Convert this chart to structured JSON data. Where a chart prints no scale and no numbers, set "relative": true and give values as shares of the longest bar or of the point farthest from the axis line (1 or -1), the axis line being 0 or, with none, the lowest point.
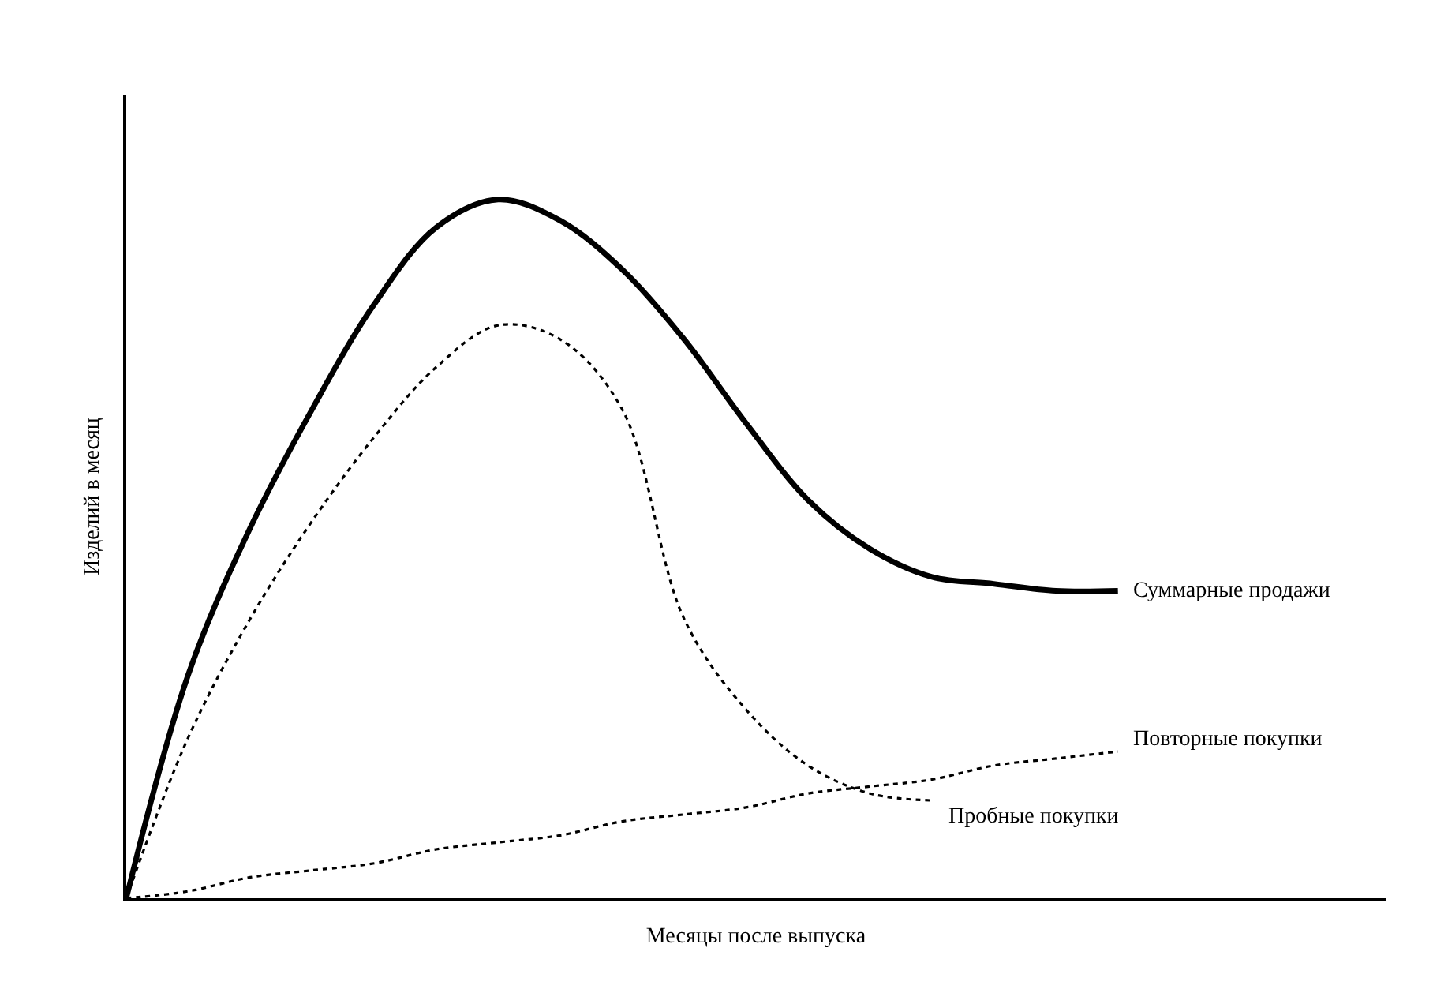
{
  "chart_data": {
    "type": "line",
    "relative": true,
    "xlabel": "Месяцы после выпуска",
    "ylabel": "Изделий в месяц",
    "categories": [
      null,
      null,
      null,
      null,
      null,
      null,
      null,
      null,
      null,
      null,
      null,
      null,
      null,
      null,
      null,
      null,
      null
    ],
    "series": [
      {
        "name": "Суммарные продажи",
        "color": "#000000",
        "line_style": "solid",
        "values": [
          0,
          0.32,
          0.53,
          0.7,
          0.85,
          0.96,
          1,
          0.97,
          0.9,
          0.8,
          0.68,
          0.57,
          0.5,
          0.46,
          0.45,
          0.44,
          0.44
        ]
      },
      {
        "name": "Повторные покупки",
        "color": "#000000",
        "line_style": "dotted",
        "values": [
          0,
          0.01,
          0.03,
          0.04,
          0.05,
          0.07,
          0.08,
          0.09,
          0.11,
          0.12,
          0.13,
          0.15,
          0.16,
          0.17,
          0.19,
          0.2,
          0.21
        ]
      },
      {
        "name": "Пробные покупки",
        "color": "#000000",
        "line_style": "dotted",
        "values": [
          0,
          0.23,
          0.4,
          0.54,
          0.66,
          0.76,
          0.82,
          0.8,
          0.7,
          0.4,
          0.27,
          0.19,
          0.15,
          0.14,
          null,
          null,
          null
        ]
      }
    ],
    "legend": false,
    "marker": "none"
  }
}
